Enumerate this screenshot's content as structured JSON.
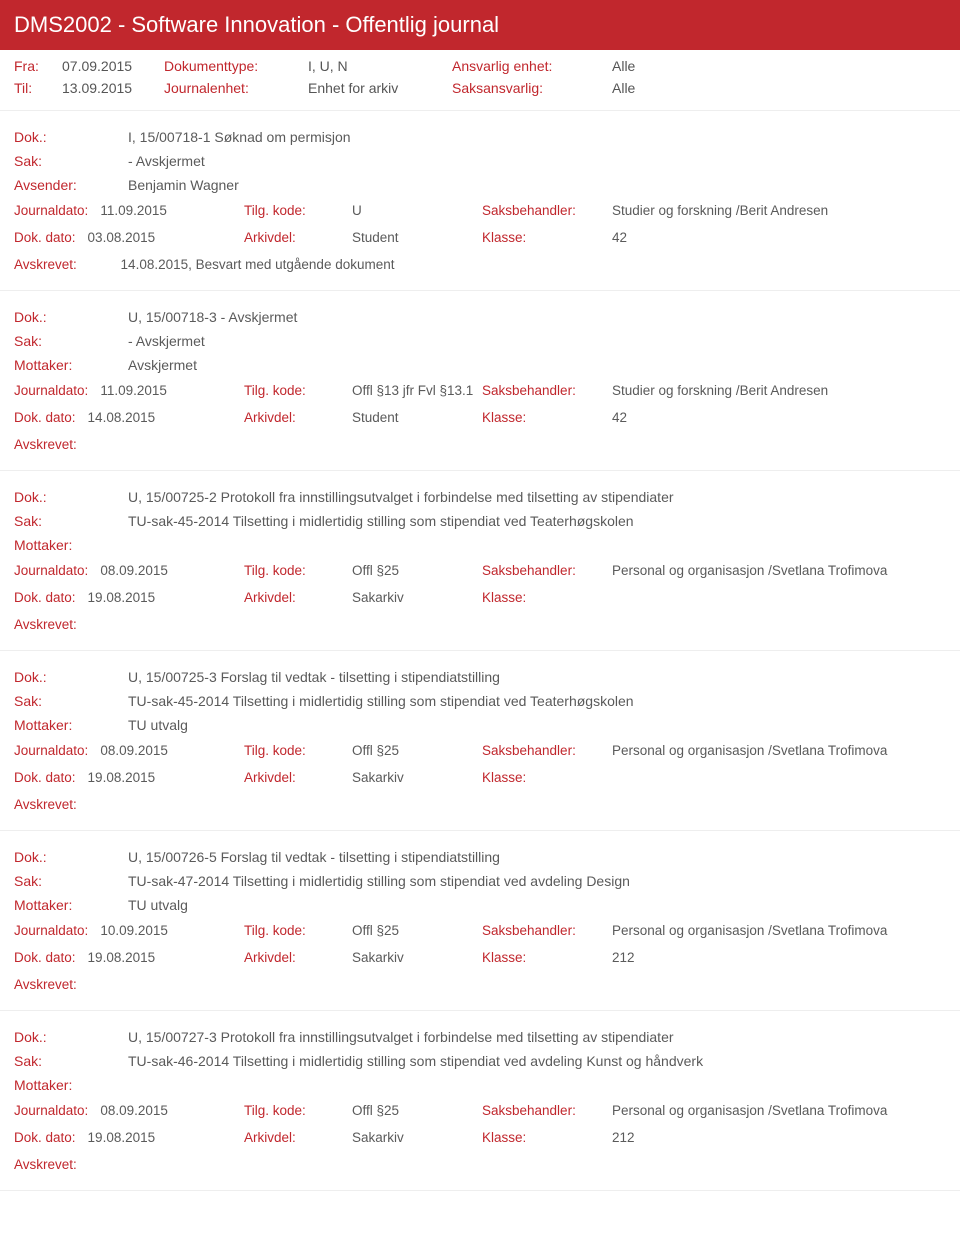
{
  "colors": {
    "accent": "#c1272d",
    "text": "#5a5a5a",
    "border": "#eeeeee",
    "header_bg": "#c1272d",
    "header_text": "#ffffff"
  },
  "typography": {
    "title_fontsize": 22,
    "body_fontsize": 14,
    "detail_fontsize": 13.5
  },
  "header": {
    "title": "DMS2002 - Software Innovation - Offentlig journal"
  },
  "meta": {
    "fra_label": "Fra:",
    "fra_value": "07.09.2015",
    "til_label": "Til:",
    "til_value": "13.09.2015",
    "doktype_label": "Dokumenttype:",
    "doktype_value": "I, U, N",
    "journalenhet_label": "Journalenhet:",
    "journalenhet_value": "Enhet for arkiv",
    "ansvarlig_label": "Ansvarlig enhet:",
    "ansvarlig_value": "Alle",
    "saksansvarlig_label": "Saksansvarlig:",
    "saksansvarlig_value": "Alle"
  },
  "labels": {
    "dok": "Dok.:",
    "sak": "Sak:",
    "avsender": "Avsender:",
    "mottaker": "Mottaker:",
    "journaldato": "Journaldato:",
    "tilgkode": "Tilg. kode:",
    "saksbehandler": "Saksbehandler:",
    "dokdato": "Dok. dato:",
    "arkivdel": "Arkivdel:",
    "klasse": "Klasse:",
    "avskrevet": "Avskrevet:"
  },
  "entries": [
    {
      "dok": "I, 15/00718-1 Søknad om permisjon",
      "sak": "- Avskjermet",
      "party_label": "Avsender:",
      "party": "Benjamin Wagner",
      "jdato": "11.09.2015",
      "tilg": "U",
      "saksb": "Studier og forskning /Berit Andresen",
      "ddato": "03.08.2015",
      "arkiv": "Student",
      "klasse": "42",
      "avskrevet": "14.08.2015, Besvart med utgående dokument"
    },
    {
      "dok": "U, 15/00718-3 - Avskjermet",
      "sak": "- Avskjermet",
      "party_label": "Mottaker:",
      "party": "Avskjermet",
      "jdato": "11.09.2015",
      "tilg": "Offl §13 jfr Fvl §13.1",
      "saksb": "Studier og forskning /Berit Andresen",
      "ddato": "14.08.2015",
      "arkiv": "Student",
      "klasse": "42",
      "avskrevet": ""
    },
    {
      "dok": "U, 15/00725-2 Protokoll fra innstillingsutvalget i forbindelse med tilsetting av stipendiater",
      "sak": "TU-sak-45-2014  Tilsetting i midlertidig stilling som stipendiat ved  Teaterhøgskolen",
      "party_label": "Mottaker:",
      "party": "",
      "jdato": "08.09.2015",
      "tilg": "Offl §25",
      "saksb": "Personal og organisasjon /Svetlana Trofimova",
      "ddato": "19.08.2015",
      "arkiv": "Sakarkiv",
      "klasse": "",
      "avskrevet": ""
    },
    {
      "dok": "U, 15/00725-3 Forslag til vedtak  - tilsetting i stipendiatstilling",
      "sak": "TU-sak-45-2014  Tilsetting i midlertidig stilling som stipendiat ved  Teaterhøgskolen",
      "party_label": "Mottaker:",
      "party": "TU utvalg",
      "jdato": "08.09.2015",
      "tilg": "Offl §25",
      "saksb": "Personal og organisasjon /Svetlana Trofimova",
      "ddato": "19.08.2015",
      "arkiv": "Sakarkiv",
      "klasse": "",
      "avskrevet": ""
    },
    {
      "dok": "U, 15/00726-5 Forslag til vedtak  - tilsetting i stipendiatstilling",
      "sak": "TU-sak-47-2014  Tilsetting i midlertidig stilling som stipendiat ved avdeling Design",
      "party_label": "Mottaker:",
      "party": "TU utvalg",
      "jdato": "10.09.2015",
      "tilg": "Offl §25",
      "saksb": "Personal og organisasjon /Svetlana Trofimova",
      "ddato": "19.08.2015",
      "arkiv": "Sakarkiv",
      "klasse": "212",
      "avskrevet": ""
    },
    {
      "dok": "U, 15/00727-3 Protokoll fra innstillingsutvalget i forbindelse med tilsetting av stipendiater",
      "sak": "TU-sak-46-2014 Tilsetting i midlertidig stilling som stipendiat ved avdeling Kunst og håndverk",
      "party_label": "Mottaker:",
      "party": "",
      "jdato": "08.09.2015",
      "tilg": "Offl §25",
      "saksb": "Personal og organisasjon /Svetlana Trofimova",
      "ddato": "19.08.2015",
      "arkiv": "Sakarkiv",
      "klasse": "212",
      "avskrevet": ""
    }
  ]
}
